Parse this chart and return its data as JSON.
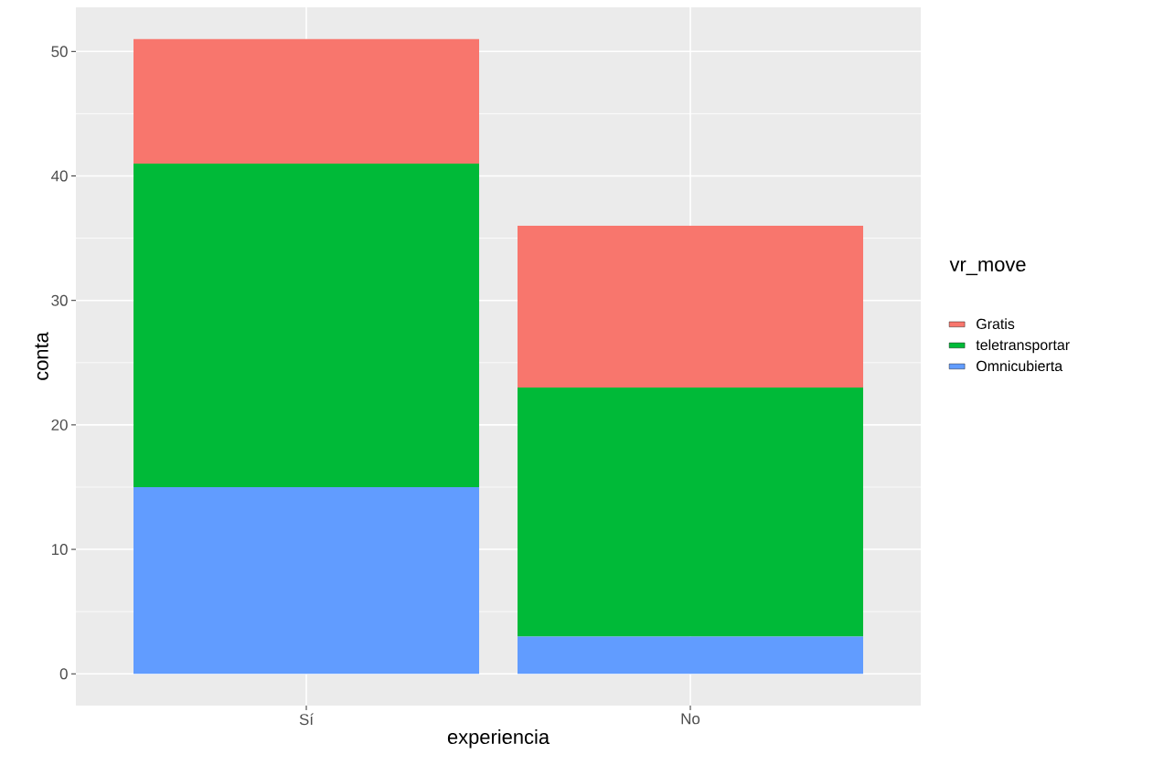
{
  "chart_data": {
    "type": "bar",
    "stacked": true,
    "xlabel": "experiencia",
    "ylabel": "conta",
    "legend_title": "vr_move",
    "categories": [
      "Sí",
      "No"
    ],
    "series": [
      {
        "name": "Omnicubierta",
        "color": "#619cff",
        "values": [
          15,
          3
        ]
      },
      {
        "name": "teletransportar",
        "color": "#00ba38",
        "values": [
          26,
          20
        ]
      },
      {
        "name": "Gratis",
        "color": "#f8766d",
        "values": [
          10,
          13
        ]
      }
    ],
    "ylim": [
      -2.55,
      53.55
    ],
    "yticks": [
      0,
      10,
      20,
      30,
      40,
      50
    ],
    "grid": true,
    "legend": "right"
  }
}
